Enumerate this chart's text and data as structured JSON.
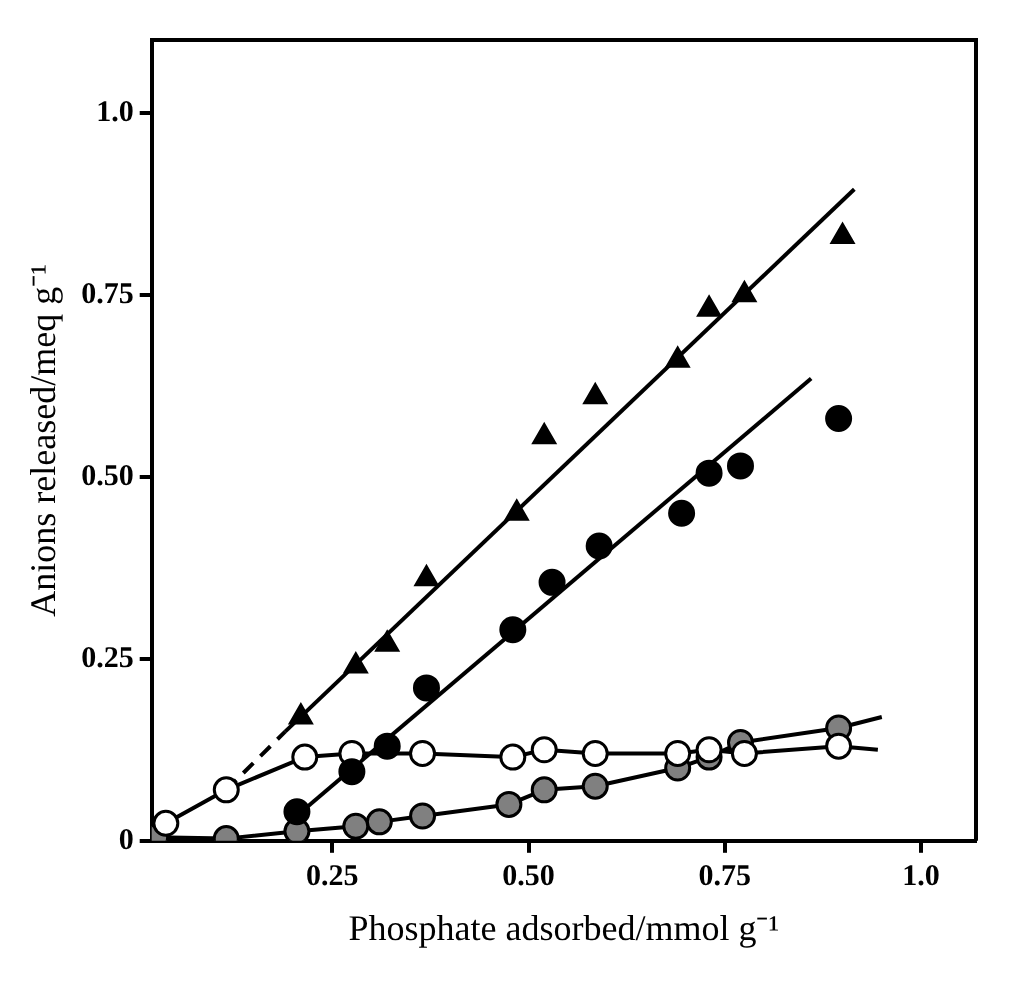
{
  "chart_data": {
    "type": "scatter",
    "xlabel": "Phosphate adsorbed/mmol g⁻¹",
    "ylabel": "Anions released/meq g⁻¹",
    "xlim": [
      0.02,
      1.07
    ],
    "ylim": [
      0,
      1.1
    ],
    "xticks": [
      {
        "value": 0.25,
        "label": "0.25"
      },
      {
        "value": 0.5,
        "label": "0.50"
      },
      {
        "value": 0.75,
        "label": "0.75"
      },
      {
        "value": 1.0,
        "label": "1.0"
      }
    ],
    "yticks": [
      0,
      {
        "value": 0.25,
        "label": "0.25"
      },
      {
        "value": 0.5,
        "label": "0.50"
      },
      {
        "value": 0.75,
        "label": "0.75"
      },
      {
        "value": 1.0,
        "label": "1.0"
      }
    ],
    "grid": false,
    "legend": false,
    "series": [
      {
        "marker": "triangle",
        "color": "#000000",
        "x": [
          0.21,
          0.28,
          0.32,
          0.37,
          0.485,
          0.52,
          0.585,
          0.69,
          0.73,
          0.775,
          0.9
        ],
        "values": [
          0.17,
          0.24,
          0.27,
          0.36,
          0.45,
          0.555,
          0.61,
          0.66,
          0.73,
          0.75,
          0.83
        ]
      },
      {
        "marker": "circle",
        "color": "#000000",
        "x": [
          0.205,
          0.275,
          0.32,
          0.37,
          0.48,
          0.53,
          0.59,
          0.695,
          0.73,
          0.77,
          0.895
        ],
        "values": [
          0.04,
          0.095,
          0.13,
          0.21,
          0.29,
          0.355,
          0.405,
          0.45,
          0.505,
          0.515,
          0.58
        ]
      },
      {
        "type": "line",
        "marker": "circle",
        "color": "#ffffff",
        "x": [
          0.038,
          0.115,
          0.215,
          0.275,
          0.365,
          0.48,
          0.52,
          0.585,
          0.69,
          0.73,
          0.775,
          0.895
        ],
        "values": [
          0.024,
          0.07,
          0.115,
          0.12,
          0.12,
          0.115,
          0.125,
          0.12,
          0.12,
          0.125,
          0.12,
          0.13
        ]
      },
      {
        "type": "line",
        "marker": "circle",
        "color": "#808080",
        "x": [
          0.025,
          0.115,
          0.205,
          0.28,
          0.31,
          0.365,
          0.475,
          0.52,
          0.585,
          0.69,
          0.73,
          0.77,
          0.895
        ],
        "values": [
          0.005,
          0.003,
          0.013,
          0.02,
          0.026,
          0.034,
          0.05,
          0.07,
          0.075,
          0.1,
          0.115,
          0.135,
          0.155
        ]
      },
      {
        "type": "line",
        "marker": "none",
        "color": "#000000",
        "x": [
          0.19,
          0.915
        ],
        "values": [
          0.15,
          0.895
        ]
      },
      {
        "type": "line",
        "marker": "none",
        "line_style": "dashed",
        "color": "#000000",
        "x": [
          0.115,
          0.19
        ],
        "values": [
          0.07,
          0.15
        ]
      },
      {
        "type": "line",
        "marker": "none",
        "color": "#000000",
        "x": [
          0.2,
          0.86
        ],
        "values": [
          0.03,
          0.635
        ]
      },
      {
        "type": "line",
        "marker": "none",
        "color": "#000000",
        "x": [
          0.895,
          0.945
        ],
        "values": [
          0.13,
          0.125
        ]
      },
      {
        "type": "line",
        "marker": "none",
        "color": "#000000",
        "x": [
          0.895,
          0.95
        ],
        "values": [
          0.155,
          0.17
        ]
      }
    ]
  }
}
